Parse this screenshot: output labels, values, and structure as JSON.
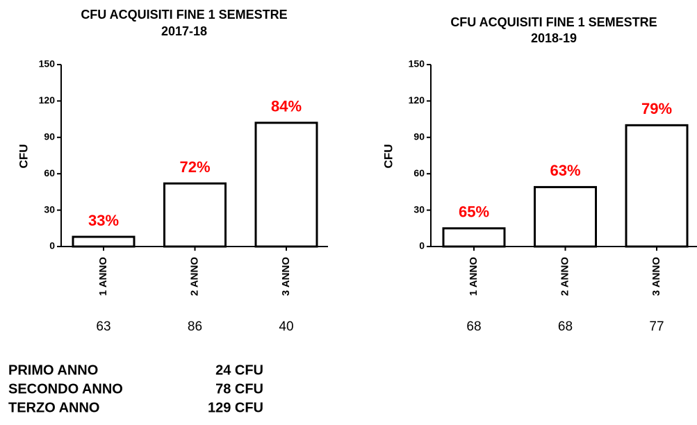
{
  "chart_data": [
    {
      "type": "bar",
      "title": "CFU ACQUISITI FINE 1 SEMESTRE",
      "subtitle": "2017-18",
      "ylabel": "CFU",
      "categories": [
        "1 ANNO",
        "2 ANNO",
        "3 ANNO"
      ],
      "values": [
        8,
        52,
        102
      ],
      "annotations": [
        "33%",
        "72%",
        "84%"
      ],
      "counts": [
        63,
        86,
        40
      ],
      "color": "#ffffff",
      "edge_color": "#000000",
      "annotation_color": "#ff0000",
      "ylim": [
        0,
        150
      ],
      "yticks": [
        0,
        30,
        60,
        90,
        120,
        150
      ]
    },
    {
      "type": "bar",
      "title": "CFU ACQUISITI FINE 1 SEMESTRE",
      "subtitle": "2018-19",
      "ylabel": "CFU",
      "categories": [
        "1 ANNO",
        "2 ANNO",
        "3 ANNO"
      ],
      "values": [
        15,
        49,
        100
      ],
      "annotations": [
        "65%",
        "63%",
        "79%"
      ],
      "counts": [
        68,
        68,
        77
      ],
      "color": "#ffffff",
      "edge_color": "#000000",
      "annotation_color": "#ff0000",
      "ylim": [
        0,
        150
      ],
      "yticks": [
        0,
        30,
        60,
        90,
        120,
        150
      ]
    }
  ],
  "summary": {
    "rows": [
      [
        "PRIMO ANNO",
        "24 CFU"
      ],
      [
        "SECONDO ANNO",
        "78 CFU"
      ],
      [
        "TERZO ANNO",
        "129 CFU"
      ]
    ]
  }
}
